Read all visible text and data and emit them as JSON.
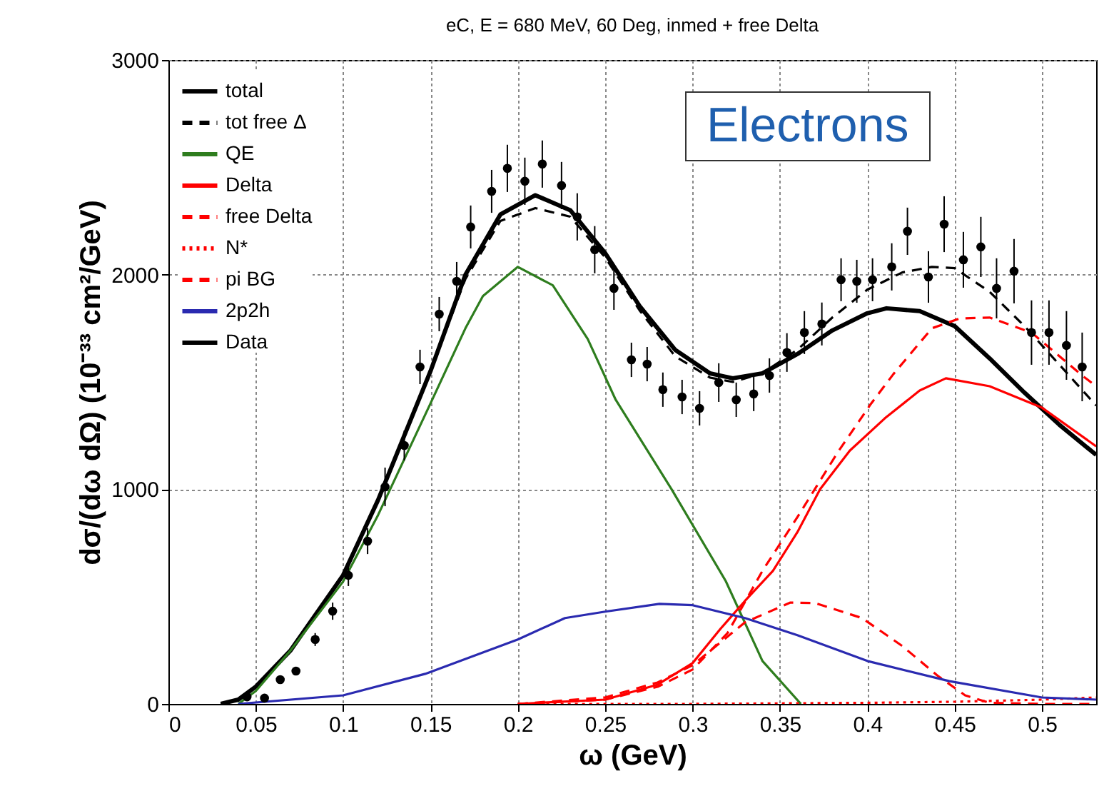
{
  "chart_data": {
    "type": "line",
    "title": "eC, E = 680 MeV, 60 Deg, inmed + free Delta",
    "xlabel": "ω (GeV)",
    "ylabel": "dσ/(dω dΩ) (10⁻³³ cm²/GeV)",
    "annotations": [
      "Electrons"
    ],
    "xlim": [
      0,
      0.531
    ],
    "xticks": [
      0,
      0.05,
      0.1,
      0.15,
      0.2,
      0.25,
      0.3,
      0.35,
      0.4,
      0.45,
      0.5
    ],
    "ylim": [
      0,
      3000
    ],
    "yticks": [
      0,
      1000,
      2000,
      3000
    ],
    "grid": true,
    "legend": "top left",
    "series": [
      {
        "name": "total",
        "color": "#000000",
        "line_style": "solid",
        "x": [
          0.03,
          0.04,
          0.05,
          0.07,
          0.1,
          0.12,
          0.15,
          0.17,
          0.19,
          0.21,
          0.23,
          0.25,
          0.27,
          0.29,
          0.31,
          0.323,
          0.34,
          0.36,
          0.38,
          0.4,
          0.411,
          0.43,
          0.45,
          0.47,
          0.49,
          0.51,
          0.531
        ],
        "values": [
          0,
          20,
          80,
          250,
          600,
          950,
          1550,
          2000,
          2280,
          2370,
          2300,
          2100,
          1850,
          1650,
          1540,
          1517,
          1540,
          1630,
          1740,
          1820,
          1843,
          1830,
          1760,
          1610,
          1450,
          1300,
          1160
        ]
      },
      {
        "name": "tot free Δ",
        "color": "#000000",
        "line_style": "dashed",
        "x": [
          0.03,
          0.04,
          0.05,
          0.07,
          0.1,
          0.12,
          0.15,
          0.17,
          0.19,
          0.21,
          0.23,
          0.25,
          0.27,
          0.29,
          0.31,
          0.323,
          0.34,
          0.36,
          0.38,
          0.4,
          0.42,
          0.437,
          0.45,
          0.47,
          0.49,
          0.51,
          0.531
        ],
        "values": [
          0,
          20,
          80,
          250,
          600,
          950,
          1550,
          1980,
          2250,
          2310,
          2270,
          2080,
          1830,
          1620,
          1520,
          1500,
          1540,
          1650,
          1800,
          1930,
          2010,
          2036,
          2030,
          1920,
          1760,
          1580,
          1390
        ]
      },
      {
        "name": "QE",
        "color": "#2e7d1e",
        "line_style": "solid",
        "x": [
          0.04,
          0.05,
          0.07,
          0.1,
          0.12,
          0.15,
          0.17,
          0.18,
          0.2,
          0.22,
          0.24,
          0.256,
          0.288,
          0.319,
          0.34,
          0.362
        ],
        "values": [
          0,
          60,
          250,
          570,
          880,
          1400,
          1750,
          1900,
          2036,
          1950,
          1700,
          1417,
          1000,
          572,
          200,
          0
        ]
      },
      {
        "name": "Delta",
        "color": "#ff0000",
        "line_style": "solid",
        "x": [
          0.2,
          0.25,
          0.28,
          0.3,
          0.316,
          0.33,
          0.346,
          0.36,
          0.373,
          0.39,
          0.41,
          0.43,
          0.445,
          0.47,
          0.5,
          0.531
        ],
        "values": [
          0,
          20,
          90,
          190,
          350,
          480,
          620,
          800,
          1000,
          1180,
          1330,
          1460,
          1517,
          1480,
          1380,
          1200
        ]
      },
      {
        "name": "free Delta",
        "color": "#ff0000",
        "line_style": "dashed",
        "x": [
          0.2,
          0.25,
          0.28,
          0.3,
          0.32,
          0.34,
          0.36,
          0.383,
          0.402,
          0.415,
          0.437,
          0.453,
          0.47,
          0.494,
          0.523,
          0.531
        ],
        "values": [
          0,
          20,
          80,
          160,
          330,
          620,
          870,
          1171,
          1397,
          1537,
          1750,
          1796,
          1800,
          1730,
          1530,
          1480
        ]
      },
      {
        "name": "N*",
        "color": "#ff0000",
        "line_style": "dotted",
        "x": [
          0.2,
          0.3,
          0.4,
          0.45,
          0.5,
          0.531
        ],
        "values": [
          0,
          0,
          5,
          10,
          20,
          30
        ]
      },
      {
        "name": "pi BG",
        "color": "#ff0000",
        "line_style": "dashed",
        "x": [
          0.2,
          0.25,
          0.28,
          0.3,
          0.33,
          0.356,
          0.37,
          0.397,
          0.42,
          0.44,
          0.456,
          0.47,
          0.5,
          0.531
        ],
        "values": [
          0,
          30,
          100,
          180,
          380,
          472,
          470,
          400,
          270,
          133,
          40,
          5,
          0,
          0
        ]
      },
      {
        "name": "2p2h",
        "color": "#2a2ab0",
        "line_style": "solid",
        "x": [
          0.04,
          0.1,
          0.147,
          0.2,
          0.227,
          0.25,
          0.281,
          0.3,
          0.33,
          0.36,
          0.4,
          0.447,
          0.5,
          0.531
        ],
        "values": [
          0,
          40,
          140,
          300,
          400,
          430,
          466,
          460,
          400,
          320,
          200,
          106,
          30,
          20
        ]
      },
      {
        "name": "Data",
        "type": "scatter",
        "marker": "circle",
        "color": "#000000",
        "x": [
          0.045,
          0.055,
          0.064,
          0.073,
          0.084,
          0.094,
          0.103,
          0.114,
          0.124,
          0.135,
          0.144,
          0.155,
          0.165,
          0.173,
          0.185,
          0.194,
          0.204,
          0.214,
          0.225,
          0.234,
          0.244,
          0.255,
          0.265,
          0.274,
          0.283,
          0.294,
          0.304,
          0.315,
          0.325,
          0.335,
          0.344,
          0.354,
          0.364,
          0.374,
          0.385,
          0.394,
          0.403,
          0.414,
          0.423,
          0.435,
          0.444,
          0.455,
          0.465,
          0.474,
          0.484,
          0.494,
          0.504,
          0.514,
          0.523
        ],
        "values": [
          33,
          27,
          113,
          153,
          300,
          432,
          599,
          758,
          1011,
          1204,
          1570,
          1816,
          1969,
          2222,
          2388,
          2495,
          2435,
          2515,
          2415,
          2269,
          2116,
          1936,
          1603,
          1583,
          1464,
          1430,
          1377,
          1497,
          1417,
          1444,
          1530,
          1637,
          1730,
          1770,
          1976,
          1969,
          1976,
          2036,
          2202,
          1989,
          2235,
          2069,
          2129,
          1936,
          2016,
          1730,
          1730,
          1670,
          1570
        ],
        "errors": [
          10,
          10,
          20,
          20,
          30,
          40,
          50,
          60,
          90,
          70,
          80,
          80,
          90,
          100,
          100,
          110,
          110,
          110,
          110,
          110,
          110,
          100,
          80,
          80,
          80,
          80,
          80,
          90,
          80,
          80,
          80,
          90,
          100,
          100,
          100,
          100,
          100,
          110,
          110,
          120,
          130,
          130,
          140,
          140,
          150,
          150,
          150,
          160,
          160
        ]
      }
    ]
  }
}
